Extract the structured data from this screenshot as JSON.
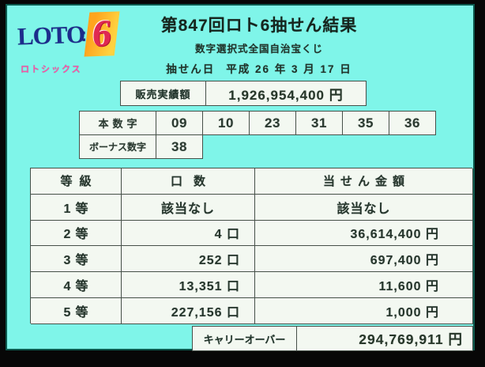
{
  "colors": {
    "screen_background": "#7FF5E9",
    "frame": "#070707",
    "panel_border": "#0C5A4E",
    "cell_background": "#F3F8F1",
    "cell_border": "#465049",
    "text": "#21332A",
    "logo_blue": "#1C2C8C",
    "logo_red": "#E02A52",
    "logo_orange": "#FFAA22",
    "logo_pink": "#FF4FA6"
  },
  "logo": {
    "word": "LOTO",
    "colon": ":",
    "number": "6",
    "subtext": "ロトシックス"
  },
  "header": {
    "title": "第847回ロト6抽せん結果",
    "subtitle": "数字選択式全国自治宝くじ",
    "draw_date_label": "抽せん日",
    "draw_date": "平成 26 年 3 月 17 日"
  },
  "sales": {
    "label": "販売実績額",
    "amount": "1,926,954,400 円"
  },
  "numbers": {
    "main_label": "本数字",
    "main": [
      "09",
      "10",
      "23",
      "31",
      "35",
      "36"
    ],
    "bonus_label": "ボーナス数字",
    "bonus": "38"
  },
  "prize_table": {
    "headers": {
      "rank": "等級",
      "units": "口数",
      "amount": "当せん金額"
    },
    "rows": [
      {
        "rank": "1等",
        "units": "該当なし",
        "amount": "該当なし"
      },
      {
        "rank": "2等",
        "units": "4 口",
        "amount": "36,614,400 円"
      },
      {
        "rank": "3等",
        "units": "252 口",
        "amount": "697,400 円"
      },
      {
        "rank": "4等",
        "units": "13,351 口",
        "amount": "11,600 円"
      },
      {
        "rank": "5等",
        "units": "227,156 口",
        "amount": "1,000 円"
      }
    ]
  },
  "carryover": {
    "label": "キャリーオーバー",
    "amount": "294,769,911 円"
  }
}
